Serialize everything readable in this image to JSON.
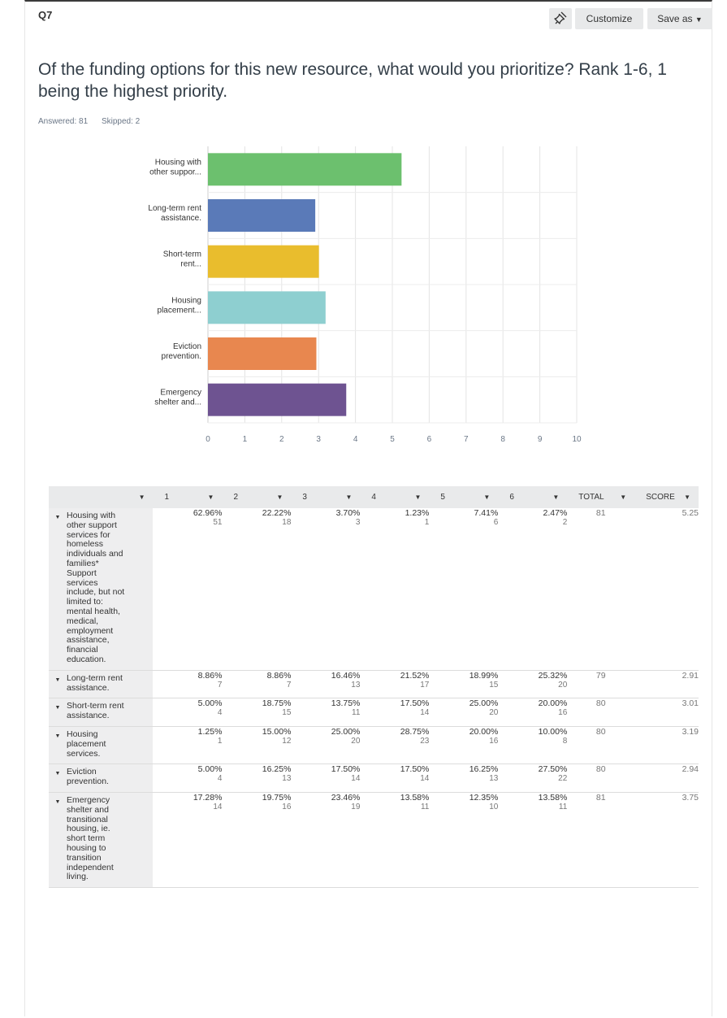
{
  "header": {
    "question_number": "Q7",
    "customize_label": "Customize",
    "save_as_label": "Save as"
  },
  "question": {
    "title": "Of the funding options for this new resource, what would you prioritize? Rank 1-6, 1 being the highest priority.",
    "answered": "Answered: 81",
    "skipped": "Skipped: 2"
  },
  "colors": {
    "accent": "#00bf6f"
  },
  "chart_data": {
    "type": "bar",
    "orientation": "horizontal",
    "categories": [
      [
        "Housing with",
        "other suppor..."
      ],
      [
        "Long-term rent",
        "assistance."
      ],
      [
        "Short-term",
        "rent..."
      ],
      [
        "Housing",
        "placement..."
      ],
      [
        "Eviction",
        "prevention."
      ],
      [
        "Emergency",
        "shelter and..."
      ]
    ],
    "values": [
      5.25,
      2.91,
      3.01,
      3.19,
      2.94,
      3.75
    ],
    "colors": [
      "#6cc06e",
      "#5a7ab8",
      "#e9bd2d",
      "#8ecfd0",
      "#e8874f",
      "#6e5391"
    ],
    "xlim": [
      0,
      10
    ],
    "ticks": [
      "0",
      "1",
      "2",
      "3",
      "4",
      "5",
      "6",
      "7",
      "8",
      "9",
      "10"
    ],
    "grid": true
  },
  "table": {
    "columns": [
      "1",
      "2",
      "3",
      "4",
      "5",
      "6",
      "TOTAL",
      "SCORE"
    ],
    "rows": [
      {
        "label": "Housing with other support services for homeless individuals and families* Support services include, but not limited to: mental health, medical, employment assistance, financial education.",
        "cells": [
          [
            "62.96%",
            "51"
          ],
          [
            "22.22%",
            "18"
          ],
          [
            "3.70%",
            "3"
          ],
          [
            "1.23%",
            "1"
          ],
          [
            "7.41%",
            "6"
          ],
          [
            "2.47%",
            "2"
          ]
        ],
        "total": "81",
        "score": "5.25"
      },
      {
        "label": "Long-term rent assistance.",
        "cells": [
          [
            "8.86%",
            "7"
          ],
          [
            "8.86%",
            "7"
          ],
          [
            "16.46%",
            "13"
          ],
          [
            "21.52%",
            "17"
          ],
          [
            "18.99%",
            "15"
          ],
          [
            "25.32%",
            "20"
          ]
        ],
        "total": "79",
        "score": "2.91"
      },
      {
        "label": "Short-term rent assistance.",
        "cells": [
          [
            "5.00%",
            "4"
          ],
          [
            "18.75%",
            "15"
          ],
          [
            "13.75%",
            "11"
          ],
          [
            "17.50%",
            "14"
          ],
          [
            "25.00%",
            "20"
          ],
          [
            "20.00%",
            "16"
          ]
        ],
        "total": "80",
        "score": "3.01"
      },
      {
        "label": "Housing placement services.",
        "cells": [
          [
            "1.25%",
            "1"
          ],
          [
            "15.00%",
            "12"
          ],
          [
            "25.00%",
            "20"
          ],
          [
            "28.75%",
            "23"
          ],
          [
            "20.00%",
            "16"
          ],
          [
            "10.00%",
            "8"
          ]
        ],
        "total": "80",
        "score": "3.19"
      },
      {
        "label": "Eviction prevention.",
        "cells": [
          [
            "5.00%",
            "4"
          ],
          [
            "16.25%",
            "13"
          ],
          [
            "17.50%",
            "14"
          ],
          [
            "17.50%",
            "14"
          ],
          [
            "16.25%",
            "13"
          ],
          [
            "27.50%",
            "22"
          ]
        ],
        "total": "80",
        "score": "2.94"
      },
      {
        "label": "Emergency shelter and transitional housing, ie. short term housing to transition independent living.",
        "cells": [
          [
            "17.28%",
            "14"
          ],
          [
            "19.75%",
            "16"
          ],
          [
            "23.46%",
            "19"
          ],
          [
            "13.58%",
            "11"
          ],
          [
            "12.35%",
            "10"
          ],
          [
            "13.58%",
            "11"
          ]
        ],
        "total": "81",
        "score": "3.75"
      }
    ]
  }
}
